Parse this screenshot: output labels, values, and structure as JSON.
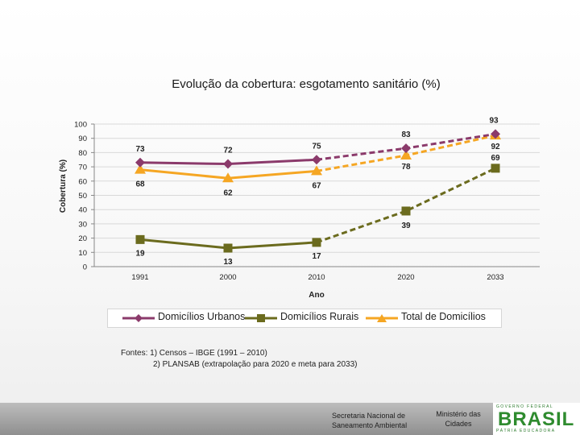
{
  "chart_data": {
    "type": "line",
    "title": "Evolução  da cobertura:  esgotamento sanitário  (%)",
    "xlabel": "Ano",
    "ylabel": "Cobertura (%)",
    "ylim": [
      0,
      100
    ],
    "yticks": [
      "0",
      "10",
      "20",
      "30",
      "40",
      "50",
      "60",
      "70",
      "80",
      "90",
      "100"
    ],
    "categories": [
      "1991",
      "2000",
      "2010",
      "2020",
      "2033"
    ],
    "series": [
      {
        "name": "Domicílios Urbanos",
        "color": "#8b3a6b",
        "marker": "diamond",
        "values": [
          73,
          72,
          75,
          83,
          93
        ],
        "labels": [
          "73",
          "72",
          "75",
          "83",
          "93"
        ]
      },
      {
        "name": "Domicílios Rurais",
        "color": "#6b6b1e",
        "marker": "square",
        "values": [
          19,
          13,
          17,
          39,
          69
        ],
        "labels": [
          "19",
          "13",
          "17",
          "39",
          "69"
        ]
      },
      {
        "name": "Total de Domicílios",
        "color": "#f5a623",
        "marker": "triangle",
        "values": [
          68,
          62,
          67,
          78,
          92
        ],
        "labels": [
          "68",
          "62",
          "67",
          "78",
          "92"
        ]
      }
    ],
    "projected_from_index": 2
  },
  "sources": {
    "line1": "Fontes: 1) Censos – IBGE (1991 – 2010)",
    "line2": "2) PLANSAB (extrapolação para 2020 e meta para 2033)"
  },
  "footer": {
    "secretaria": "Secretaria Nacional de Saneamento Ambiental",
    "ministerio": "Ministério das Cidades",
    "logo_top": "GOVERNO FEDERAL",
    "logo_word": "BRASIL",
    "logo_bottom": "PÁTRIA EDUCADORA"
  }
}
